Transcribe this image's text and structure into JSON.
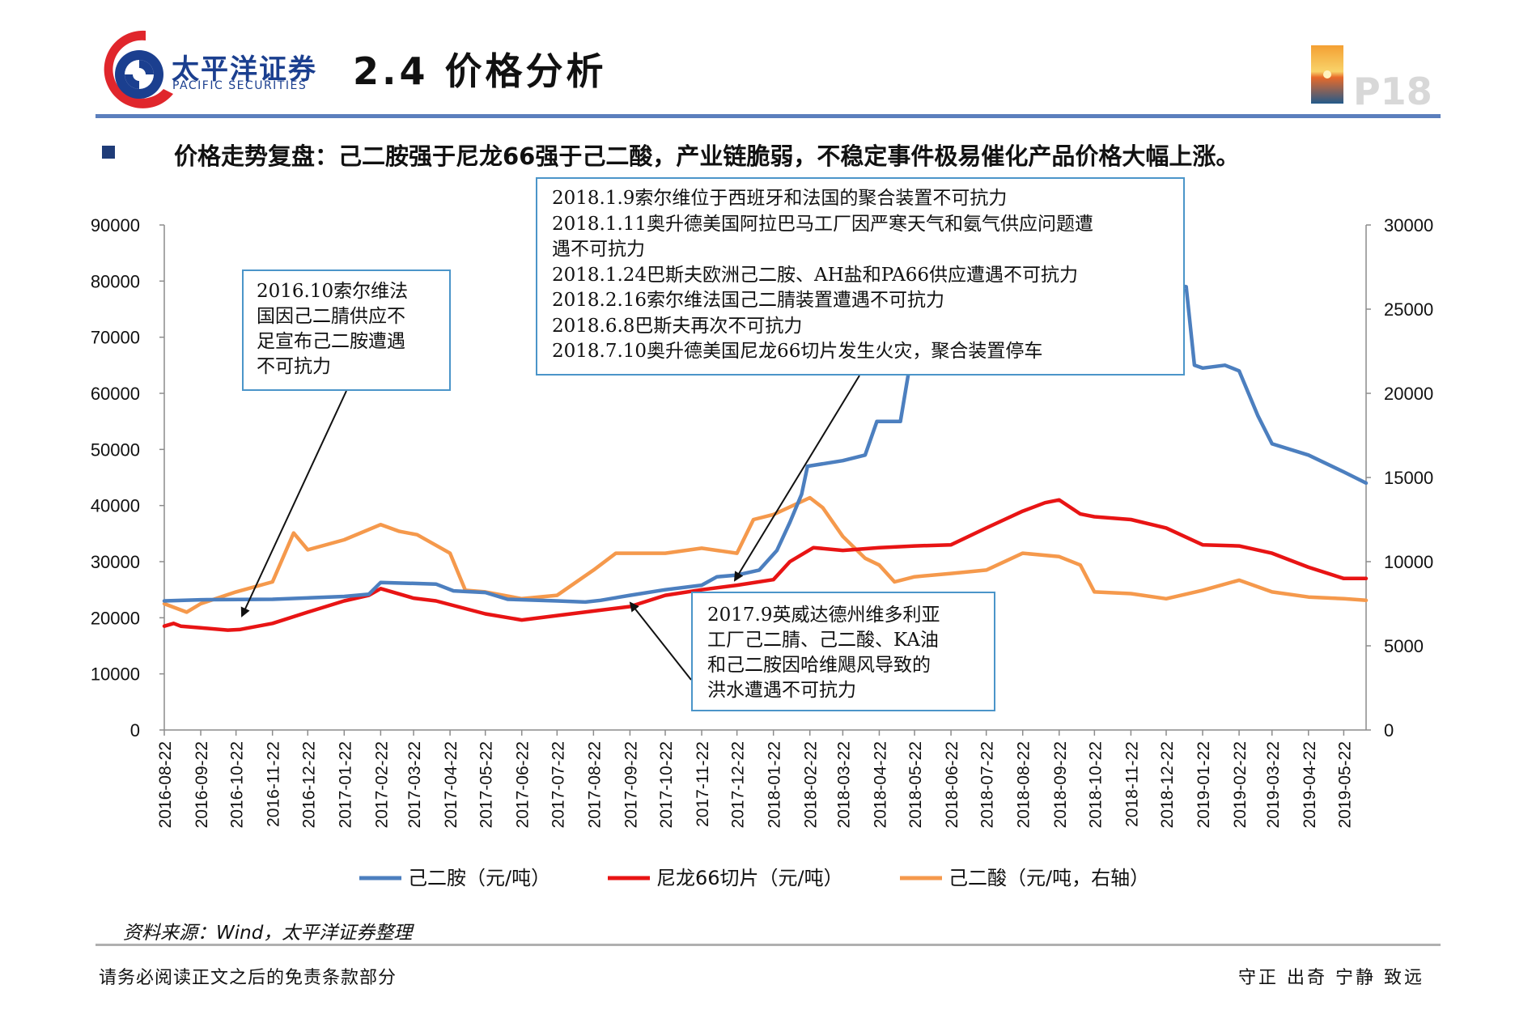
{
  "header": {
    "brand_cn": "太平洋证券",
    "brand_en": "PACIFIC SECURITIES",
    "title": "2.4 价格分析",
    "page_num": "P18"
  },
  "subtitle": "价格走势复盘：己二胺强于尼龙66强于己二酸，产业链脆弱，不稳定事件极易催化产品价格大幅上涨。",
  "colors": {
    "adiponitrile_amine": "#4c7fbf",
    "nylon66": "#e81414",
    "adipic": "#f5994c",
    "brand": "#1b3f8f",
    "callout_border": "#4b95c9"
  },
  "annotations": {
    "a2016": [
      "2016.10索尔维法",
      "国因己二腈供应不",
      "足宣布己二胺遭遇",
      "不可抗力"
    ],
    "a2018": [
      "2018.1.9索尔维位于西班牙和法国的聚合装置不可抗力",
      "2018.1.11奥升德美国阿拉巴马工厂因严寒天气和氨气供应问题遭",
      "遇不可抗力",
      "2018.1.24巴斯夫欧洲己二胺、AH盐和PA66供应遭遇不可抗力",
      "2018.2.16索尔维法国己二腈装置遭遇不可抗力",
      "2018.6.8巴斯夫再次不可抗力",
      "2018.7.10奥升德美国尼龙66切片发生火灾，聚合装置停车"
    ],
    "a2017": [
      "2017.9英威达德州维多利亚",
      "工厂己二腈、己二酸、KA油",
      "和己二胺因哈维飓风导致的",
      "洪水遭遇不可抗力"
    ]
  },
  "chart_data": {
    "type": "line",
    "x_ticks": [
      "2016-08-22",
      "2016-09-22",
      "2016-10-22",
      "2016-11-22",
      "2016-12-22",
      "2017-01-22",
      "2017-02-22",
      "2017-03-22",
      "2017-04-22",
      "2017-05-22",
      "2017-06-22",
      "2017-07-22",
      "2017-08-22",
      "2017-09-22",
      "2017-10-22",
      "2017-11-22",
      "2017-12-22",
      "2018-01-22",
      "2018-02-22",
      "2018-03-22",
      "2018-04-22",
      "2018-05-22",
      "2018-06-22",
      "2018-07-22",
      "2018-08-22",
      "2018-09-22",
      "2018-10-22",
      "2018-11-22",
      "2018-12-22",
      "2019-01-22",
      "2019-02-22",
      "2019-03-22",
      "2019-04-22",
      "2019-05-22"
    ],
    "y_left": {
      "min": 0,
      "max": 90000,
      "ticks": [
        "0",
        "10000",
        "20000",
        "30000",
        "40000",
        "50000",
        "60000",
        "70000",
        "80000",
        "90000"
      ]
    },
    "y_right": {
      "min": 0,
      "max": 30000,
      "ticks": [
        "0",
        "5000",
        "10000",
        "15000",
        "20000",
        "25000",
        "30000"
      ]
    },
    "series": [
      {
        "name": "己二胺（元/吨）",
        "axis": "left",
        "color": "#4c7fbf",
        "x": [
          "2016-08-22",
          "2016-09-22",
          "2016-11-22",
          "2017-01-22",
          "2017-02-12",
          "2017-02-22",
          "2017-04-10",
          "2017-04-25",
          "2017-05-22",
          "2017-06-10",
          "2017-07-22",
          "2017-08-15",
          "2017-08-28",
          "2017-09-22",
          "2017-10-22",
          "2017-11-22",
          "2017-12-05",
          "2017-12-22",
          "2018-01-10",
          "2018-01-25",
          "2018-02-05",
          "2018-02-15",
          "2018-02-20",
          "2018-03-22",
          "2018-04-10",
          "2018-04-20",
          "2018-05-10",
          "2018-05-18",
          "2018-05-28",
          "2018-06-10",
          "2018-06-22",
          "2018-07-05",
          "2018-07-22",
          "2018-08-10",
          "2018-08-25",
          "2018-09-10",
          "2018-09-22",
          "2018-10-10",
          "2018-10-22",
          "2018-11-10",
          "2018-12-05",
          "2018-12-15",
          "2019-01-08",
          "2019-01-15",
          "2019-01-22",
          "2019-02-10",
          "2019-02-22",
          "2019-03-10",
          "2019-03-22",
          "2019-04-22",
          "2019-05-22",
          "2019-06-10"
        ],
        "values": [
          23000,
          23200,
          23300,
          23800,
          24200,
          26300,
          26000,
          24800,
          24500,
          23300,
          23000,
          22800,
          23100,
          24000,
          25000,
          25800,
          27300,
          27600,
          28500,
          32000,
          37000,
          42000,
          47000,
          48000,
          49000,
          55000,
          55000,
          65000,
          67000,
          68000,
          72000,
          73000,
          80000,
          77000,
          76000,
          75500,
          76000,
          81000,
          82000,
          82500,
          82500,
          80000,
          79000,
          65000,
          64500,
          65000,
          64000,
          56000,
          51000,
          49000,
          46000,
          44000
        ]
      },
      {
        "name": "尼龙66切片（元/吨）",
        "axis": "left",
        "color": "#e81414",
        "x": [
          "2016-08-22",
          "2016-08-30",
          "2016-09-05",
          "2016-09-22",
          "2016-10-15",
          "2016-10-25",
          "2016-11-22",
          "2016-12-22",
          "2017-01-22",
          "2017-02-12",
          "2017-02-22",
          "2017-03-22",
          "2017-04-10",
          "2017-05-22",
          "2017-06-22",
          "2017-07-22",
          "2017-08-22",
          "2017-09-22",
          "2017-10-22",
          "2017-11-22",
          "2017-12-22",
          "2018-01-22",
          "2018-02-05",
          "2018-02-25",
          "2018-03-22",
          "2018-04-22",
          "2018-05-22",
          "2018-06-22",
          "2018-07-22",
          "2018-08-22",
          "2018-09-10",
          "2018-09-22",
          "2018-10-10",
          "2018-10-22",
          "2018-11-22",
          "2018-12-22",
          "2019-01-22",
          "2019-02-22",
          "2019-03-22",
          "2019-04-22",
          "2019-05-22",
          "2019-06-10"
        ],
        "values": [
          18500,
          19000,
          18500,
          18200,
          17800,
          17900,
          19000,
          21000,
          23000,
          24000,
          25200,
          23500,
          23000,
          20700,
          19600,
          20400,
          21200,
          22000,
          24000,
          25000,
          25800,
          26800,
          30000,
          32500,
          32000,
          32500,
          32800,
          33000,
          36000,
          39000,
          40500,
          41000,
          38500,
          38000,
          37500,
          36000,
          33000,
          32800,
          31500,
          29000,
          27000,
          27000
        ]
      },
      {
        "name": "己二酸（元/吨，右轴）",
        "axis": "right",
        "color": "#f5994c",
        "x": [
          "2016-08-22",
          "2016-09-10",
          "2016-09-22",
          "2016-10-22",
          "2016-11-22",
          "2016-12-10",
          "2016-12-22",
          "2017-01-22",
          "2017-02-22",
          "2017-03-10",
          "2017-03-25",
          "2017-04-22",
          "2017-05-05",
          "2017-05-22",
          "2017-06-22",
          "2017-07-22",
          "2017-08-22",
          "2017-09-10",
          "2017-09-22",
          "2017-10-22",
          "2017-11-22",
          "2017-12-22",
          "2018-01-05",
          "2018-01-22",
          "2018-02-22",
          "2018-03-05",
          "2018-03-22",
          "2018-04-10",
          "2018-04-22",
          "2018-05-05",
          "2018-05-22",
          "2018-06-22",
          "2018-07-22",
          "2018-08-22",
          "2018-09-22",
          "2018-10-10",
          "2018-10-22",
          "2018-11-22",
          "2018-12-22",
          "2019-01-22",
          "2019-02-22",
          "2019-03-22",
          "2019-04-22",
          "2019-05-22",
          "2019-06-10"
        ],
        "values": [
          7500,
          7000,
          7500,
          8200,
          8800,
          11700,
          10700,
          11300,
          12200,
          11800,
          11600,
          10500,
          8300,
          8200,
          7800,
          8000,
          9500,
          10500,
          10500,
          10500,
          10800,
          10500,
          12500,
          12800,
          13800,
          13200,
          11500,
          10200,
          9800,
          8800,
          9100,
          9300,
          9500,
          10500,
          10300,
          9800,
          8200,
          8100,
          7800,
          8300,
          8900,
          8200,
          7900,
          7800,
          7700
        ]
      }
    ],
    "legend": [
      "己二胺（元/吨）",
      "尼龙66切片（元/吨）",
      "己二酸（元/吨，右轴）"
    ],
    "legend_position": "bottom",
    "grid": false
  },
  "footer": {
    "source": "资料来源：Wind，太平洋证券整理",
    "disclaimer": "请务必阅读正文之后的免责条款部分",
    "motto": "守正 出奇 宁静 致远"
  }
}
